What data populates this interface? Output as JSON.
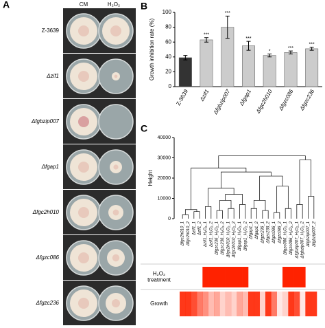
{
  "panel_a": {
    "label": "A",
    "columns": [
      "CM",
      "H₂O₂"
    ],
    "strains": [
      "Z-3639",
      "Δzif1",
      "Δfgbzip007",
      "Δfgap1",
      "Δfgc2h010",
      "Δfgzc086",
      "Δfgzc236"
    ]
  },
  "chart_data": [
    {
      "type": "bar",
      "panel": "B",
      "ylabel": "Growth inhibition rate (%)",
      "categories": [
        "Z-3639",
        "Δzif1",
        "Δfgbzip007",
        "Δfgap1",
        "Δfgc2h010",
        "Δfgzc086",
        "Δfgzc236"
      ],
      "values": [
        39,
        63,
        80,
        55,
        42,
        46,
        51
      ],
      "errors": [
        3,
        3,
        15,
        6,
        2,
        2,
        2
      ],
      "annotations": [
        null,
        "***",
        "***",
        "***",
        "*",
        "***",
        "***"
      ],
      "colors": [
        "#333333",
        "#cccccc",
        "#cccccc",
        "#cccccc",
        "#cccccc",
        "#cccccc",
        "#cccccc"
      ],
      "ylim": [
        0,
        100
      ],
      "yticks": [
        0,
        20,
        40,
        60,
        80,
        100
      ]
    },
    {
      "type": "dendrogram",
      "panel": "C",
      "ylabel": "Height",
      "leaves": [
        "Δfgc2h010_1",
        "Δfgc2h010_2",
        "Δzif1_1",
        "Δzif1_2",
        "Δzif1_H₂O₂_1",
        "Δzif1_H₂O₂_2",
        "Δfgzc236_H₂O₂_1",
        "Δfgzc236_H₂O₂_2",
        "Δfgc2h010_H₂O₂_1",
        "Δfgc2h010_H₂O₂_2",
        "Δfgap1_H₂O₂_1",
        "Δfgap1_H₂O₂_2",
        "Δfgap1_1",
        "Δfgap1_2",
        "Δfgzc236_1",
        "Δfgzc236_2",
        "Δfgzc086_1",
        "Δfgzc086_2",
        "Δfgzc086_H₂O₂_1",
        "Δfgzc086_H₂O₂_2",
        "Δfgbzip007_H₂O₂_1",
        "Δfgbzip007_H₂O₂_2",
        "Δfgbzip007_1",
        "Δfgbzip007_2"
      ],
      "merges": [
        [
          0,
          1,
          2000
        ],
        [
          2,
          3,
          3500
        ],
        [
          24,
          25,
          4500
        ],
        [
          4,
          5,
          6000
        ],
        [
          6,
          7,
          4000
        ],
        [
          8,
          9,
          5000
        ],
        [
          28,
          29,
          9000
        ],
        [
          10,
          11,
          7000
        ],
        [
          30,
          31,
          12000
        ],
        [
          27,
          32,
          15000
        ],
        [
          12,
          13,
          5000
        ],
        [
          14,
          15,
          4000
        ],
        [
          34,
          35,
          9000
        ],
        [
          16,
          17,
          3000
        ],
        [
          18,
          19,
          5000
        ],
        [
          37,
          38,
          16000
        ],
        [
          36,
          39,
          21000
        ],
        [
          33,
          40,
          23000
        ],
        [
          26,
          41,
          25000
        ],
        [
          20,
          21,
          7000
        ],
        [
          22,
          23,
          11000
        ],
        [
          43,
          44,
          29000
        ],
        [
          42,
          45,
          31000
        ]
      ],
      "color": "#000000",
      "ylim": [
        0,
        40000
      ],
      "yticks": [
        0,
        10000,
        20000,
        30000,
        40000
      ]
    },
    {
      "type": "heatmap",
      "color": "#ff2200",
      "rows": [
        {
          "name_lines": [
            "H₂O₂",
            "treatment"
          ],
          "values": [
            0,
            0,
            0,
            0,
            1,
            1,
            1,
            1,
            1,
            1,
            1,
            1,
            0,
            0,
            0,
            0,
            0,
            0,
            1,
            1,
            1,
            1,
            0,
            0
          ]
        },
        {
          "name_lines": [
            "Growth"
          ],
          "values": [
            0.9,
            0.9,
            0.8,
            0.6,
            0.5,
            0.3,
            0.4,
            0.2,
            0.3,
            0.2,
            0.4,
            0.3,
            0.9,
            0.9,
            0.2,
            0.9,
            0.6,
            0.1,
            0.2,
            0.9,
            0.8,
            0.1,
            0.9,
            0.9
          ]
        }
      ]
    }
  ]
}
